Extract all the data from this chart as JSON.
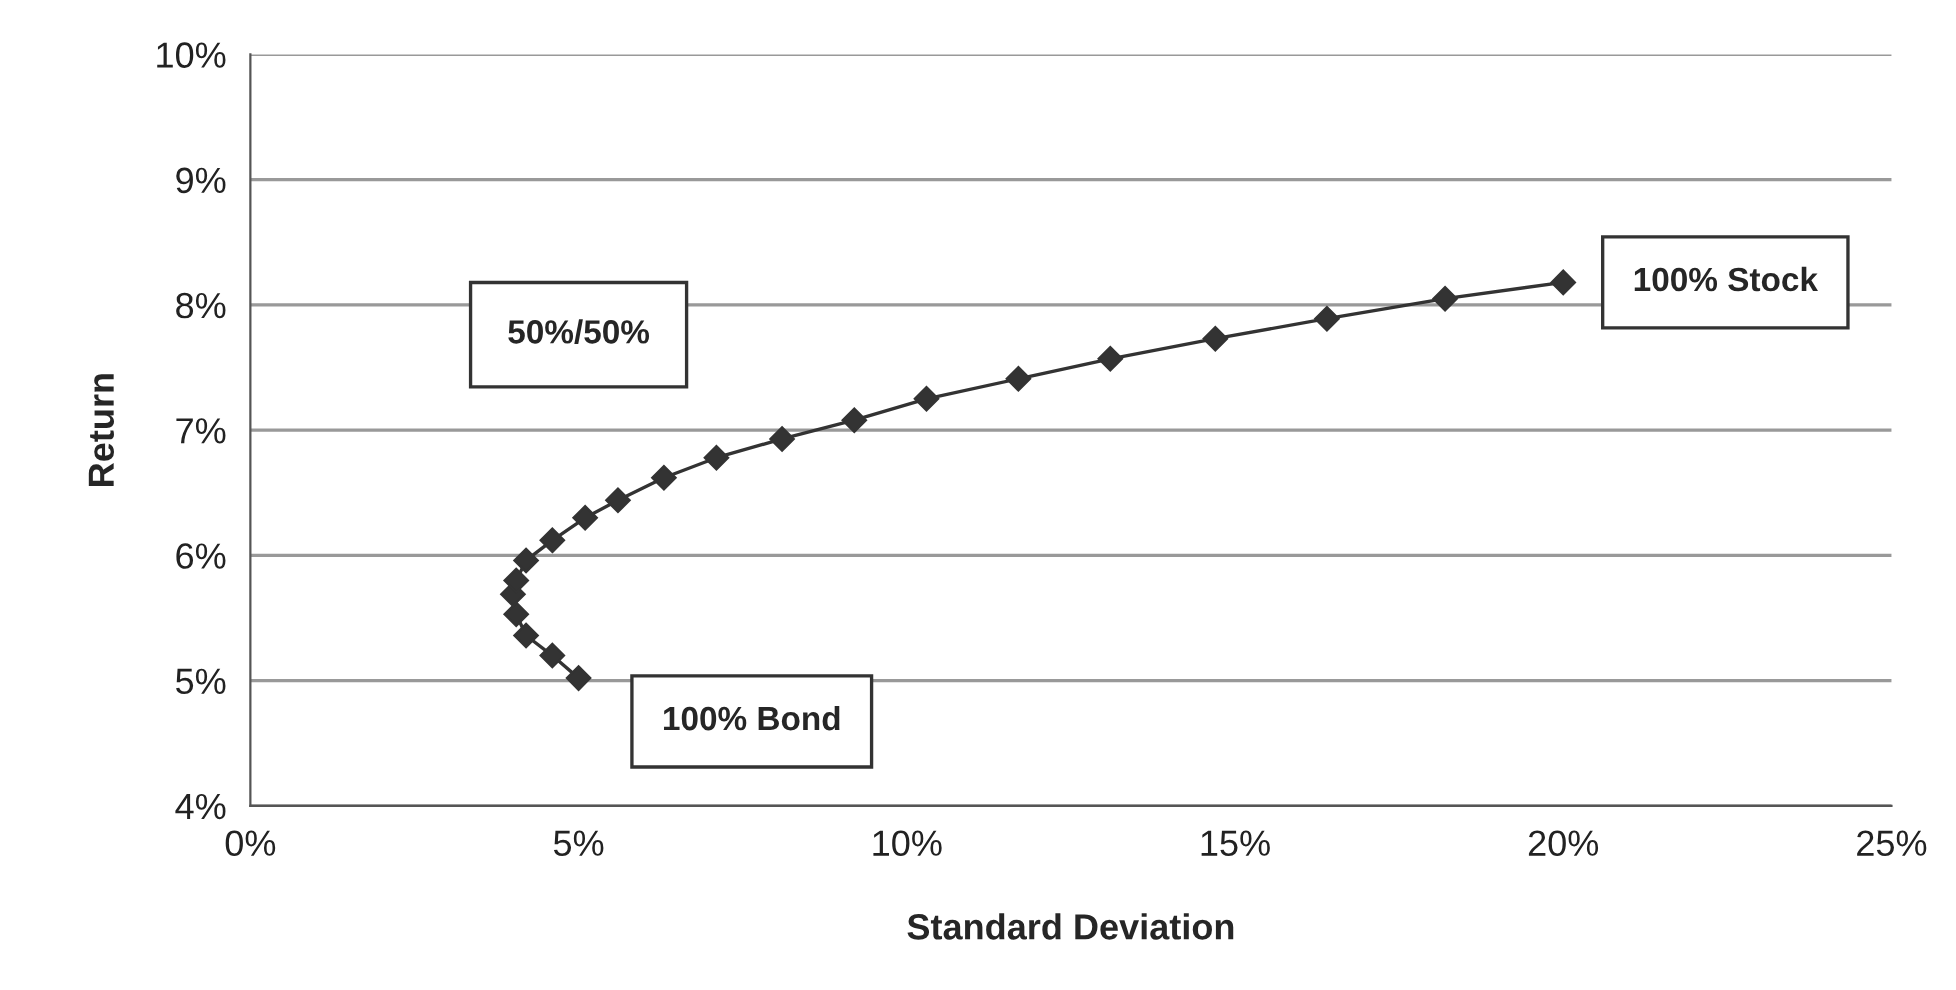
{
  "chart_data": {
    "type": "line",
    "xlabel": "Standard Deviation",
    "ylabel": "Return",
    "x": [
      5.0,
      4.6,
      4.2,
      4.05,
      4.0,
      4.05,
      4.2,
      4.6,
      5.1,
      5.6,
      6.3,
      7.1,
      8.1,
      9.2,
      10.3,
      11.7,
      13.1,
      14.7,
      16.4,
      18.2,
      20.0
    ],
    "series": [
      {
        "color": "#333333",
        "values": [
          5.02,
          5.2,
          5.36,
          5.53,
          5.69,
          5.8,
          5.96,
          6.12,
          6.3,
          6.44,
          6.62,
          6.78,
          6.93,
          7.08,
          7.25,
          7.41,
          7.57,
          7.73,
          7.89,
          8.05,
          8.18
        ]
      }
    ],
    "marker": "diamond",
    "line_style": "solid",
    "grid": "y",
    "legend": false,
    "xlim": [
      0,
      25
    ],
    "ylim": [
      4,
      10
    ],
    "xticks": [
      {
        "value": 0,
        "label": "0%"
      },
      {
        "value": 5,
        "label": "5%"
      },
      {
        "value": 10,
        "label": "10%"
      },
      {
        "value": 15,
        "label": "15%"
      },
      {
        "value": 20,
        "label": "20%"
      },
      {
        "value": 25,
        "label": "25%"
      }
    ],
    "yticks": [
      {
        "value": 4,
        "label": "4%"
      },
      {
        "value": 5,
        "label": "5%"
      },
      {
        "value": 6,
        "label": "6%"
      },
      {
        "value": 7,
        "label": "7%"
      },
      {
        "value": 8,
        "label": "8%"
      },
      {
        "value": 9,
        "label": "9%"
      },
      {
        "value": 10,
        "label": "10%"
      }
    ],
    "annotations": [
      {
        "text": "100% Stock",
        "x": 20.0,
        "y": 8.18
      },
      {
        "text": "50%/50%"
      },
      {
        "text": "100% Bond",
        "x": 5.0,
        "y": 5.02
      }
    ]
  }
}
